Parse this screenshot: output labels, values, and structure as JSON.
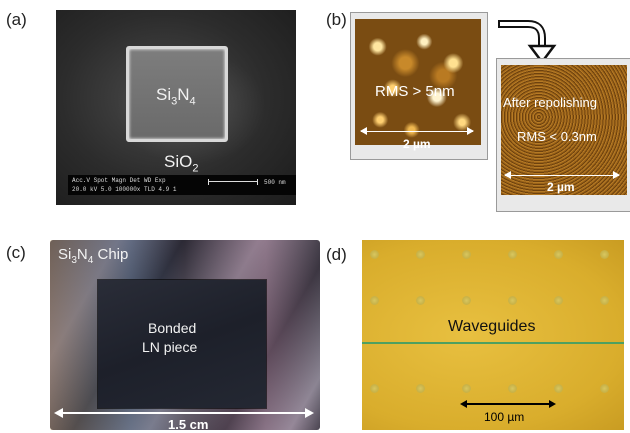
{
  "panels": {
    "a": {
      "label": "(a)",
      "core": "Si3N4",
      "cladding": "SiO2",
      "sem_bar_line1": "Acc.V  Spot Magn   Det  WD  Exp",
      "sem_bar_line2": "20.0 kV 5.0   100000x TLD 4.9    1",
      "sem_scale_label": "500 nm"
    },
    "b": {
      "label": "(b)",
      "before_text": "RMS > 5nm",
      "before_scale": "2 µm",
      "after_title": "After repolishing",
      "after_text": "RMS < 0.3nm",
      "after_scale": "2 µm"
    },
    "c": {
      "label": "(c)",
      "chip_label": "Si3N4 Chip",
      "piece_line1": "Bonded",
      "piece_line2": "LN piece",
      "scale": "1.5 cm"
    },
    "d": {
      "label": "(d)",
      "waveguide_label": "Waveguides",
      "scale": "100 µm"
    }
  },
  "colors": {
    "afm_bright": "#ffe6a0",
    "afm_dark": "#7a4c12",
    "microscope_yellow": "#e0b434",
    "waveguide_green": "#4ea060"
  }
}
